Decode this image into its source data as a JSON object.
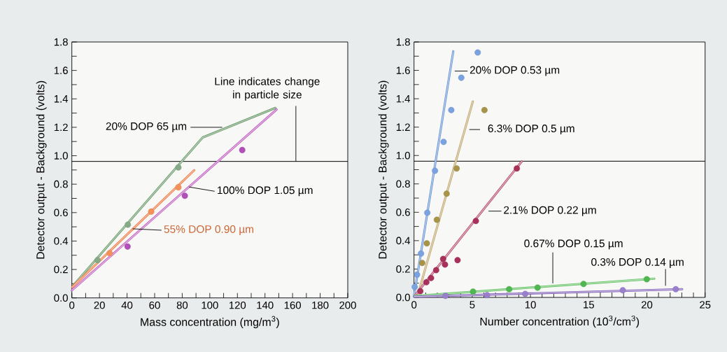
{
  "chart_data": [
    {
      "type": "line",
      "xlabel": "Mass concentration (mg/m$^{3}$)",
      "ylabel": "Detector output - Background (volts)",
      "xlim": [
        0,
        200
      ],
      "xticks": [
        0,
        {
          "value": 10,
          "label": null
        },
        20,
        {
          "value": 30,
          "label": null
        },
        40,
        {
          "value": 50,
          "label": null
        },
        60,
        {
          "value": 70,
          "label": null
        },
        80,
        {
          "value": 90,
          "label": null
        },
        100,
        {
          "value": 110,
          "label": null
        },
        120,
        {
          "value": 130,
          "label": null
        },
        140,
        {
          "value": 150,
          "label": null
        },
        160,
        {
          "value": 170,
          "label": null
        },
        180,
        {
          "value": 190,
          "label": null
        },
        200
      ],
      "ylim": [
        0,
        1.8
      ],
      "yticks": [
        {
          "value": 0,
          "label": "0.0"
        },
        {
          "value": 0.1,
          "label": null
        },
        {
          "value": 0.2,
          "label": "0.2"
        },
        {
          "value": 0.3,
          "label": null
        },
        {
          "value": 0.4,
          "label": "0.4"
        },
        {
          "value": 0.5,
          "label": null
        },
        {
          "value": 0.6,
          "label": "0.6"
        },
        {
          "value": 0.7,
          "label": null
        },
        {
          "value": 0.8,
          "label": "0.8"
        },
        {
          "value": 0.9,
          "label": null
        },
        {
          "value": 1.0,
          "label": "1.0"
        },
        {
          "value": 1.1,
          "label": null
        },
        {
          "value": 1.2,
          "label": "1.2"
        },
        {
          "value": 1.3,
          "label": null
        },
        {
          "value": 1.4,
          "label": "1.4"
        },
        {
          "value": 1.5,
          "label": null
        },
        {
          "value": 1.6,
          "label": "1.6"
        },
        {
          "value": 1.7,
          "label": null
        },
        {
          "value": 1.8,
          "label": "1.8"
        }
      ],
      "ref_lines": [
        {
          "axis": "y",
          "value": 0.96,
          "color": "#000000"
        }
      ],
      "annotations": [
        {
          "text": "Line indicates change in particle size",
          "x": 162.4,
          "y": 0.96
        }
      ],
      "series": [
        {
          "name": "20% DOP 65 µm",
          "color": "#6a9a6a",
          "marker": "none",
          "x": [
            1.2,
            94.8,
            147.5
          ],
          "values": [
            0.09,
            1.128,
            1.336
          ]
        },
        {
          "type": "scatter",
          "color": "#86aa86",
          "marker": "circle",
          "x": [
            18.6,
            40.6,
            77.2
          ],
          "values": [
            0.266,
            0.515,
            0.918
          ]
        },
        {
          "name": "55% DOP 0.90 µm",
          "color": "#f07840",
          "marker": "none",
          "x": [
            0.3,
            88.7
          ],
          "values": [
            0.077,
            0.898
          ]
        },
        {
          "type": "scatter",
          "color": "#f4905a",
          "marker": "circle",
          "x": [
            27.4,
            57.5,
            77.2
          ],
          "values": [
            0.315,
            0.607,
            0.778
          ]
        },
        {
          "name": "100% DOP 1.05 µm",
          "color": "#c060c0",
          "marker": "none",
          "x": [
            0,
            148.4
          ],
          "values": [
            0.053,
            1.325
          ]
        },
        {
          "type": "scatter",
          "color": "#b050b8",
          "marker": "circle",
          "x": [
            40.4,
            81.9,
            123.5
          ],
          "values": [
            0.361,
            0.718,
            1.04
          ]
        }
      ]
    },
    {
      "type": "line",
      "xlabel": "Number concentration (10$^{3}$/cm$^{3}$)",
      "ylabel": "Detector output - Background (volts)",
      "xlim": [
        0,
        25
      ],
      "xticks": [
        0,
        {
          "value": 1,
          "label": null
        },
        {
          "value": 2,
          "label": null
        },
        {
          "value": 3,
          "label": null
        },
        {
          "value": 4,
          "label": null
        },
        5,
        {
          "value": 6,
          "label": null
        },
        {
          "value": 7,
          "label": null
        },
        {
          "value": 8,
          "label": null
        },
        {
          "value": 9,
          "label": null
        },
        10,
        {
          "value": 11,
          "label": null
        },
        {
          "value": 12,
          "label": null
        },
        {
          "value": 13,
          "label": null
        },
        {
          "value": 14,
          "label": null
        },
        15,
        {
          "value": 16,
          "label": null
        },
        {
          "value": 17,
          "label": null
        },
        {
          "value": 18,
          "label": null
        },
        {
          "value": 19,
          "label": null
        },
        20,
        {
          "value": 21,
          "label": null
        },
        {
          "value": 22,
          "label": null
        },
        {
          "value": 23,
          "label": null
        },
        {
          "value": 24,
          "label": null
        },
        25
      ],
      "ylim": [
        0,
        1.8
      ],
      "yticks": [
        {
          "value": 0,
          "label": "0.0"
        },
        {
          "value": 0.1,
          "label": null
        },
        {
          "value": 0.2,
          "label": "0.2"
        },
        {
          "value": 0.3,
          "label": null
        },
        {
          "value": 0.4,
          "label": "0.4"
        },
        {
          "value": 0.5,
          "label": null
        },
        {
          "value": 0.6,
          "label": "0.6"
        },
        {
          "value": 0.7,
          "label": null
        },
        {
          "value": 0.8,
          "label": "0.8"
        },
        {
          "value": 0.9,
          "label": null
        },
        {
          "value": 1.0,
          "label": "1.0"
        },
        {
          "value": 1.1,
          "label": null
        },
        {
          "value": 1.2,
          "label": "1.2"
        },
        {
          "value": 1.3,
          "label": null
        },
        {
          "value": 1.4,
          "label": "1.4"
        },
        {
          "value": 1.5,
          "label": null
        },
        {
          "value": 1.6,
          "label": "1.6"
        },
        {
          "value": 1.7,
          "label": null
        },
        {
          "value": 1.8,
          "label": "1.8"
        }
      ],
      "ref_lines": [
        {
          "axis": "y",
          "value": 0.96,
          "color": "#000000"
        }
      ],
      "series": [
        {
          "name": "20% DOP 0.53 µm",
          "color": "#6a96d8",
          "marker": "none",
          "x": [
            0,
            3.37
          ],
          "values": [
            0.01,
            1.734
          ]
        },
        {
          "type": "scatter",
          "color": "#7aa2e0",
          "marker": "circle",
          "x": [
            0.06,
            0.26,
            0.6,
            1.14,
            1.8,
            2.54,
            3.2,
            4.06,
            5.47
          ],
          "values": [
            0.074,
            0.16,
            0.309,
            0.597,
            0.893,
            1.096,
            1.32,
            1.548,
            1.726
          ]
        },
        {
          "name": "6.3% DOP 0.5 µm",
          "color": "#c0a870",
          "marker": "none",
          "x": [
            0.3,
            5.05
          ],
          "values": [
            0.01,
            1.381
          ]
        },
        {
          "type": "scatter",
          "color": "#a89448",
          "marker": "circle",
          "x": [
            0.7,
            1.1,
            1.96,
            2.8,
            3.66,
            6.05
          ],
          "values": [
            0.243,
            0.381,
            0.547,
            0.731,
            0.909,
            1.32
          ]
        },
        {
          "name": "2.1% DOP 0.22 µm",
          "color": "#b85070",
          "marker": "none",
          "x": [
            0.1,
            9.25
          ],
          "values": [
            0.016,
            0.958
          ]
        },
        {
          "type": "scatter",
          "color": "#a8305a",
          "marker": "circle",
          "x": [
            0.54,
            1.06,
            1.46,
            1.9,
            2.5,
            2.66,
            3.74,
            5.31,
            8.83
          ],
          "values": [
            0.044,
            0.107,
            0.137,
            0.192,
            0.271,
            0.232,
            0.263,
            0.539,
            0.909
          ]
        },
        {
          "name": "0.67% DOP 0.15 µm",
          "color": "#60c060",
          "marker": "none",
          "x": [
            0,
            20.63
          ],
          "values": [
            0.01,
            0.132
          ]
        },
        {
          "type": "scatter",
          "color": "#50b850",
          "marker": "circle",
          "x": [
            5.07,
            8.17,
            10.61,
            14.56,
            19.99
          ],
          "values": [
            0.041,
            0.058,
            0.069,
            0.095,
            0.128
          ]
        },
        {
          "name": "0.3% DOP 0.14 µm",
          "color": "#8060b8",
          "marker": "none",
          "x": [
            0,
            23.03
          ],
          "values": [
            0.005,
            0.058
          ]
        },
        {
          "type": "scatter",
          "color": "#9a80cc",
          "marker": "circle",
          "x": [
            2.7,
            6.27,
            9.55,
            17.93,
            22.48
          ],
          "values": [
            0.011,
            0.016,
            0.025,
            0.051,
            0.058
          ]
        }
      ]
    }
  ]
}
